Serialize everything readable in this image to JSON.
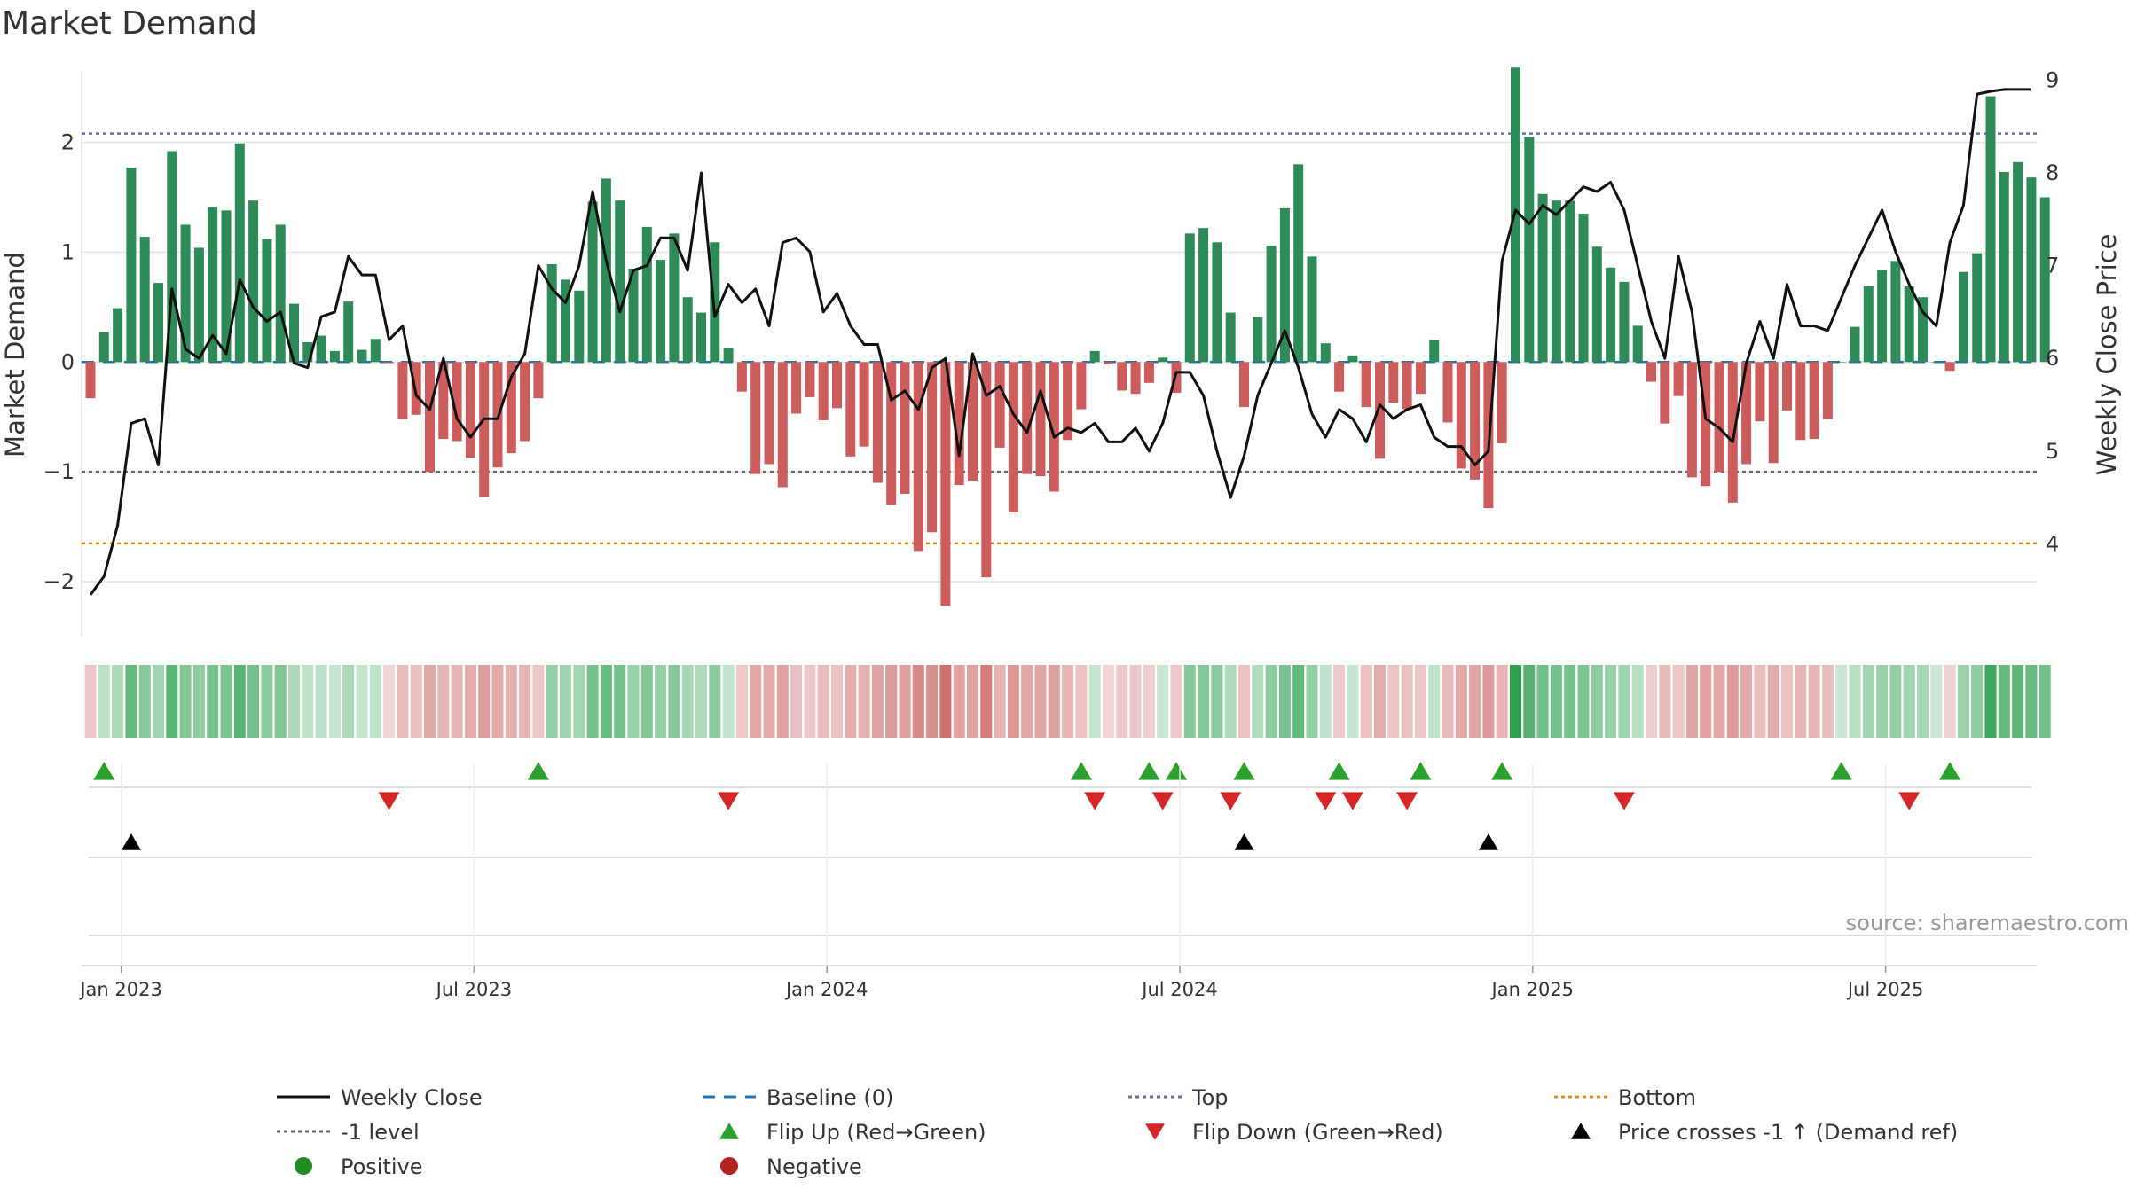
{
  "chart_data": {
    "type": "bar",
    "title": "Market Demand",
    "ylabel_left": "Market Demand",
    "ylabel_right": "Weekly Close Price",
    "source": "source: sharemaestro.com",
    "y_left_range": [
      -2.5,
      2.65
    ],
    "y_left_ticks": [
      {
        "v": 2,
        "label": "2"
      },
      {
        "v": 1,
        "label": "1"
      },
      {
        "v": 0,
        "label": "0"
      },
      {
        "v": -1,
        "label": "−1"
      },
      {
        "v": -2,
        "label": "−2"
      }
    ],
    "y_right_range": [
      3.0,
      9.1
    ],
    "y_right_ticks": [
      {
        "v": 9,
        "label": "9"
      },
      {
        "v": 8,
        "label": "8"
      },
      {
        "v": 7,
        "label": "7"
      },
      {
        "v": 6,
        "label": "6"
      },
      {
        "v": 5,
        "label": "5"
      },
      {
        "v": 4,
        "label": "4"
      }
    ],
    "x_ticks": [
      {
        "week": 2,
        "label": "Jan 2023"
      },
      {
        "week": 28,
        "label": "Jul 2023"
      },
      {
        "week": 54,
        "label": "Jan 2024"
      },
      {
        "week": 80,
        "label": "Jul 2024"
      },
      {
        "week": 106,
        "label": "Jan 2025"
      },
      {
        "week": 132,
        "label": "Jul 2025"
      }
    ],
    "levels": {
      "top": 2.08,
      "minus_one": -1.0,
      "bottom": -1.65,
      "baseline": 0
    },
    "demand": [
      -0.33,
      0.27,
      0.49,
      1.77,
      1.14,
      0.72,
      1.92,
      1.25,
      1.04,
      1.41,
      1.38,
      1.99,
      1.47,
      1.12,
      1.25,
      0.53,
      0.18,
      0.24,
      0.1,
      0.55,
      0.11,
      0.21,
      -0.01,
      -0.52,
      -0.48,
      -1.0,
      -0.7,
      -0.72,
      -0.87,
      -1.23,
      -0.96,
      -0.83,
      -0.72,
      -0.33,
      0.89,
      0.75,
      0.65,
      1.46,
      1.67,
      1.47,
      0.85,
      1.23,
      0.93,
      1.17,
      0.59,
      0.45,
      1.09,
      0.13,
      -0.27,
      -1.02,
      -0.93,
      -1.14,
      -0.47,
      -0.32,
      -0.53,
      -0.42,
      -0.86,
      -0.77,
      -1.1,
      -1.3,
      -1.2,
      -1.72,
      -1.55,
      -2.22,
      -1.12,
      -1.08,
      -1.96,
      -0.78,
      -1.37,
      -1.02,
      -1.04,
      -1.18,
      -0.71,
      -0.43,
      0.1,
      -0.02,
      -0.26,
      -0.29,
      -0.19,
      0.04,
      -0.28,
      1.17,
      1.22,
      1.09,
      0.45,
      -0.41,
      0.41,
      1.06,
      1.4,
      1.8,
      0.96,
      0.17,
      -0.27,
      0.06,
      -0.41,
      -0.88,
      -0.37,
      -0.43,
      -0.29,
      0.2,
      -0.55,
      -0.97,
      -1.07,
      -1.33,
      -0.74,
      2.68,
      2.05,
      1.53,
      1.47,
      1.47,
      1.35,
      1.05,
      0.86,
      0.73,
      0.33,
      -0.18,
      -0.56,
      -0.31,
      -1.05,
      -1.13,
      -1.0,
      -1.28,
      -0.93,
      -0.54,
      -0.92,
      -0.44,
      -0.71,
      -0.7,
      -0.52,
      0.0,
      0.32,
      0.69,
      0.84,
      0.92,
      0.69,
      0.59,
      0.0,
      -0.08,
      0.82,
      0.99,
      2.42,
      1.73,
      1.82,
      1.68,
      1.5
    ],
    "weekly_close": [
      3.45,
      3.65,
      4.2,
      5.3,
      5.35,
      4.85,
      6.75,
      6.1,
      6.0,
      6.25,
      6.05,
      6.85,
      6.55,
      6.4,
      6.5,
      5.95,
      5.9,
      6.45,
      6.5,
      7.1,
      6.9,
      6.9,
      6.2,
      6.35,
      5.6,
      5.45,
      6.0,
      5.35,
      5.15,
      5.35,
      5.35,
      5.8,
      6.05,
      7.0,
      6.75,
      6.6,
      7.0,
      7.8,
      7.05,
      6.5,
      6.95,
      7.0,
      7.3,
      7.3,
      6.95,
      8.0,
      6.45,
      6.8,
      6.6,
      6.75,
      6.35,
      7.25,
      7.3,
      7.15,
      6.5,
      6.7,
      6.35,
      6.15,
      6.15,
      5.55,
      5.65,
      5.45,
      5.9,
      6.0,
      4.95,
      6.05,
      5.6,
      5.7,
      5.4,
      5.2,
      5.65,
      5.15,
      5.25,
      5.2,
      5.3,
      5.1,
      5.1,
      5.25,
      5.0,
      5.3,
      5.85,
      5.85,
      5.6,
      5.0,
      4.5,
      4.95,
      5.6,
      5.95,
      6.3,
      5.9,
      5.4,
      5.15,
      5.45,
      5.35,
      5.1,
      5.5,
      5.35,
      5.45,
      5.5,
      5.15,
      5.05,
      5.05,
      4.85,
      5.0,
      7.05,
      7.6,
      7.45,
      7.65,
      7.55,
      7.7,
      7.85,
      7.8,
      7.9,
      7.6,
      7.0,
      6.4,
      6.0,
      7.1,
      6.5,
      5.35,
      5.25,
      5.1,
      5.95,
      6.4,
      6.0,
      6.8,
      6.35,
      6.35,
      6.3,
      6.65,
      7.0,
      7.3,
      7.6,
      7.15,
      6.8,
      6.5,
      6.35,
      7.25,
      7.65,
      8.85,
      8.88,
      8.9,
      8.9,
      8.9
    ],
    "flip_up_weeks": [
      1,
      33,
      73,
      78,
      80,
      85,
      92,
      98,
      104,
      129,
      137
    ],
    "flip_down_weeks": [
      22,
      47,
      74,
      79,
      84,
      91,
      93,
      97,
      113,
      134
    ],
    "price_cross_weeks": [
      3,
      85,
      103
    ],
    "legend": [
      {
        "label": "Weekly Close",
        "symbol": "solid-line",
        "color": "#111111"
      },
      {
        "label": "Baseline (0)",
        "symbol": "dashed-line",
        "color": "#1f77b4"
      },
      {
        "label": "Top",
        "symbol": "dotted-line",
        "color": "#6b6bb8"
      },
      {
        "label": "Bottom",
        "symbol": "dotted-line",
        "color": "#e08a1e"
      },
      {
        "label": "-1 level",
        "symbol": "dotted-line",
        "color": "#666666"
      },
      {
        "label": "Flip Up (Red→Green)",
        "symbol": "triangle-up",
        "color": "#2ca02c"
      },
      {
        "label": "Flip Down (Green→Red)",
        "symbol": "triangle-down",
        "color": "#d62728"
      },
      {
        "label": "Price crosses -1 ↑ (Demand ref)",
        "symbol": "triangle-up",
        "color": "#000000"
      },
      {
        "label": "Positive",
        "symbol": "circle",
        "color": "#228b22"
      },
      {
        "label": "Negative",
        "symbol": "circle",
        "color": "#b22222"
      }
    ]
  },
  "colors": {
    "positive": "#2e8b57",
    "negative": "#cd5c5c",
    "grid": "#e5e5e5"
  }
}
